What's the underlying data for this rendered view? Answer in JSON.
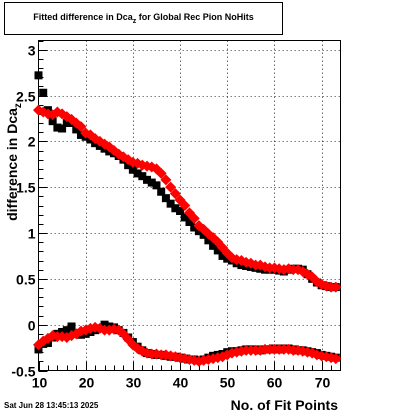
{
  "title_prefix": "Fitted difference in Dca",
  "title_sub": "z",
  "title_suffix": " for Global Rec Pion NoHits",
  "footer_text": "Sat Jun 28 13:45:13 2025",
  "colors": {
    "black_series": "#000000",
    "red_series": "#ff0000",
    "grid": "#000000"
  },
  "chart_data": {
    "type": "scatter",
    "title": "Fitted difference in Dca z for Global Rec Pion NoHits",
    "xlabel": "No. of Fit Points",
    "ylabel": "difference in Dca z",
    "ylabel_main": "difference in Dca",
    "ylabel_sub": "z",
    "xlim": [
      10,
      74
    ],
    "ylim": [
      -0.5,
      3.1
    ],
    "xticks": [
      10,
      20,
      30,
      40,
      50,
      60,
      70
    ],
    "yticks": [
      -0.5,
      0,
      0.5,
      1,
      1.5,
      2,
      2.5,
      3
    ],
    "ytick_labels": [
      "-0.5",
      "0",
      "0.5",
      "1",
      "1.5",
      "2",
      "2.5",
      "3"
    ],
    "grid": true,
    "series": [
      {
        "marker": "square",
        "color": "#000000",
        "x": [
          10,
          11,
          12,
          13,
          14,
          15,
          16,
          17,
          18,
          19,
          20,
          21,
          22,
          23,
          24,
          25,
          26,
          27,
          28,
          29,
          30,
          31,
          32,
          33,
          34,
          35,
          36,
          37,
          38,
          39,
          40,
          41,
          42,
          43,
          44,
          45,
          46,
          47,
          48,
          49,
          50,
          51,
          52,
          53,
          54,
          55,
          56,
          57,
          58,
          59,
          60,
          61,
          62,
          63,
          64,
          65,
          66,
          67,
          68,
          69,
          70,
          71,
          72,
          73
        ],
        "y": [
          2.72,
          2.53,
          2.34,
          2.22,
          2.15,
          2.14,
          2.2,
          2.2,
          2.13,
          2.07,
          2.05,
          2.02,
          1.98,
          1.95,
          1.92,
          1.89,
          1.87,
          1.84,
          1.8,
          1.74,
          1.69,
          1.65,
          1.62,
          1.58,
          1.55,
          1.52,
          1.45,
          1.38,
          1.32,
          1.27,
          1.24,
          1.17,
          1.12,
          1.06,
          1.02,
          0.98,
          0.92,
          0.86,
          0.81,
          0.75,
          0.72,
          0.7,
          0.67,
          0.65,
          0.64,
          0.63,
          0.62,
          0.61,
          0.6,
          0.6,
          0.6,
          0.59,
          0.58,
          0.6,
          0.61,
          0.61,
          0.6,
          0.55,
          0.5,
          0.46,
          0.43,
          0.42,
          0.41,
          0.41
        ]
      },
      {
        "marker": "square",
        "color": "#000000",
        "x": [
          10,
          11,
          12,
          13,
          14,
          15,
          16,
          17,
          18,
          19,
          20,
          21,
          22,
          23,
          24,
          25,
          26,
          27,
          28,
          29,
          30,
          31,
          32,
          33,
          34,
          35,
          36,
          37,
          38,
          39,
          40,
          41,
          42,
          43,
          44,
          45,
          46,
          47,
          48,
          49,
          50,
          51,
          52,
          53,
          54,
          55,
          56,
          57,
          58,
          59,
          60,
          61,
          62,
          63,
          64,
          65,
          66,
          67,
          68,
          69,
          70,
          71,
          72,
          73
        ],
        "y": [
          -0.27,
          -0.21,
          -0.2,
          -0.14,
          -0.1,
          -0.08,
          -0.06,
          -0.02,
          -0.09,
          -0.11,
          -0.1,
          -0.08,
          -0.06,
          -0.04,
          0.0,
          -0.02,
          -0.03,
          -0.06,
          -0.09,
          -0.14,
          -0.19,
          -0.24,
          -0.28,
          -0.31,
          -0.32,
          -0.33,
          -0.33,
          -0.34,
          -0.35,
          -0.35,
          -0.36,
          -0.37,
          -0.38,
          -0.38,
          -0.39,
          -0.38,
          -0.36,
          -0.34,
          -0.33,
          -0.32,
          -0.3,
          -0.29,
          -0.29,
          -0.28,
          -0.27,
          -0.27,
          -0.27,
          -0.28,
          -0.27,
          -0.27,
          -0.26,
          -0.27,
          -0.26,
          -0.26,
          -0.27,
          -0.28,
          -0.28,
          -0.29,
          -0.3,
          -0.31,
          -0.33,
          -0.34,
          -0.35,
          -0.36
        ]
      },
      {
        "marker": "diamond",
        "color": "#ff0000",
        "x": [
          10,
          11,
          12,
          13,
          14,
          15,
          16,
          17,
          18,
          19,
          20,
          21,
          22,
          23,
          24,
          25,
          26,
          27,
          28,
          29,
          30,
          31,
          32,
          33,
          34,
          35,
          36,
          37,
          38,
          39,
          40,
          41,
          42,
          43,
          44,
          45,
          46,
          47,
          48,
          49,
          50,
          51,
          52,
          53,
          54,
          55,
          56,
          57,
          58,
          59,
          60,
          61,
          62,
          63,
          64,
          65,
          66,
          67,
          68,
          69,
          70,
          71,
          72,
          73
        ],
        "y": [
          2.34,
          2.32,
          2.3,
          2.29,
          2.32,
          2.3,
          2.27,
          2.24,
          2.2,
          2.16,
          2.09,
          2.07,
          2.03,
          2.0,
          1.97,
          1.94,
          1.9,
          1.86,
          1.83,
          1.8,
          1.77,
          1.76,
          1.74,
          1.73,
          1.72,
          1.7,
          1.65,
          1.58,
          1.5,
          1.43,
          1.36,
          1.3,
          1.22,
          1.16,
          1.08,
          1.04,
          0.99,
          0.95,
          0.9,
          0.84,
          0.78,
          0.73,
          0.71,
          0.7,
          0.68,
          0.67,
          0.65,
          0.65,
          0.63,
          0.62,
          0.62,
          0.61,
          0.6,
          0.61,
          0.6,
          0.6,
          0.58,
          0.55,
          0.52,
          0.47,
          0.44,
          0.42,
          0.41,
          0.41
        ]
      },
      {
        "marker": "diamond",
        "color": "#ff0000",
        "x": [
          10,
          11,
          12,
          13,
          14,
          15,
          16,
          17,
          18,
          19,
          20,
          21,
          22,
          23,
          24,
          25,
          26,
          27,
          28,
          29,
          30,
          31,
          32,
          33,
          34,
          35,
          36,
          37,
          38,
          39,
          40,
          41,
          42,
          43,
          44,
          45,
          46,
          47,
          48,
          49,
          50,
          51,
          52,
          53,
          54,
          55,
          56,
          57,
          58,
          59,
          60,
          61,
          62,
          63,
          64,
          65,
          66,
          67,
          68,
          69,
          70,
          71,
          72,
          73
        ],
        "y": [
          -0.22,
          -0.18,
          -0.15,
          -0.12,
          -0.13,
          -0.13,
          -0.14,
          -0.12,
          -0.1,
          -0.07,
          -0.06,
          -0.04,
          -0.03,
          -0.04,
          -0.06,
          -0.06,
          -0.05,
          -0.06,
          -0.1,
          -0.16,
          -0.22,
          -0.26,
          -0.29,
          -0.31,
          -0.32,
          -0.32,
          -0.33,
          -0.33,
          -0.34,
          -0.35,
          -0.36,
          -0.37,
          -0.38,
          -0.39,
          -0.4,
          -0.39,
          -0.38,
          -0.37,
          -0.36,
          -0.35,
          -0.33,
          -0.31,
          -0.3,
          -0.29,
          -0.28,
          -0.28,
          -0.28,
          -0.28,
          -0.27,
          -0.27,
          -0.27,
          -0.27,
          -0.27,
          -0.27,
          -0.28,
          -0.28,
          -0.29,
          -0.3,
          -0.31,
          -0.33,
          -0.34,
          -0.35,
          -0.36,
          -0.37
        ]
      }
    ]
  }
}
